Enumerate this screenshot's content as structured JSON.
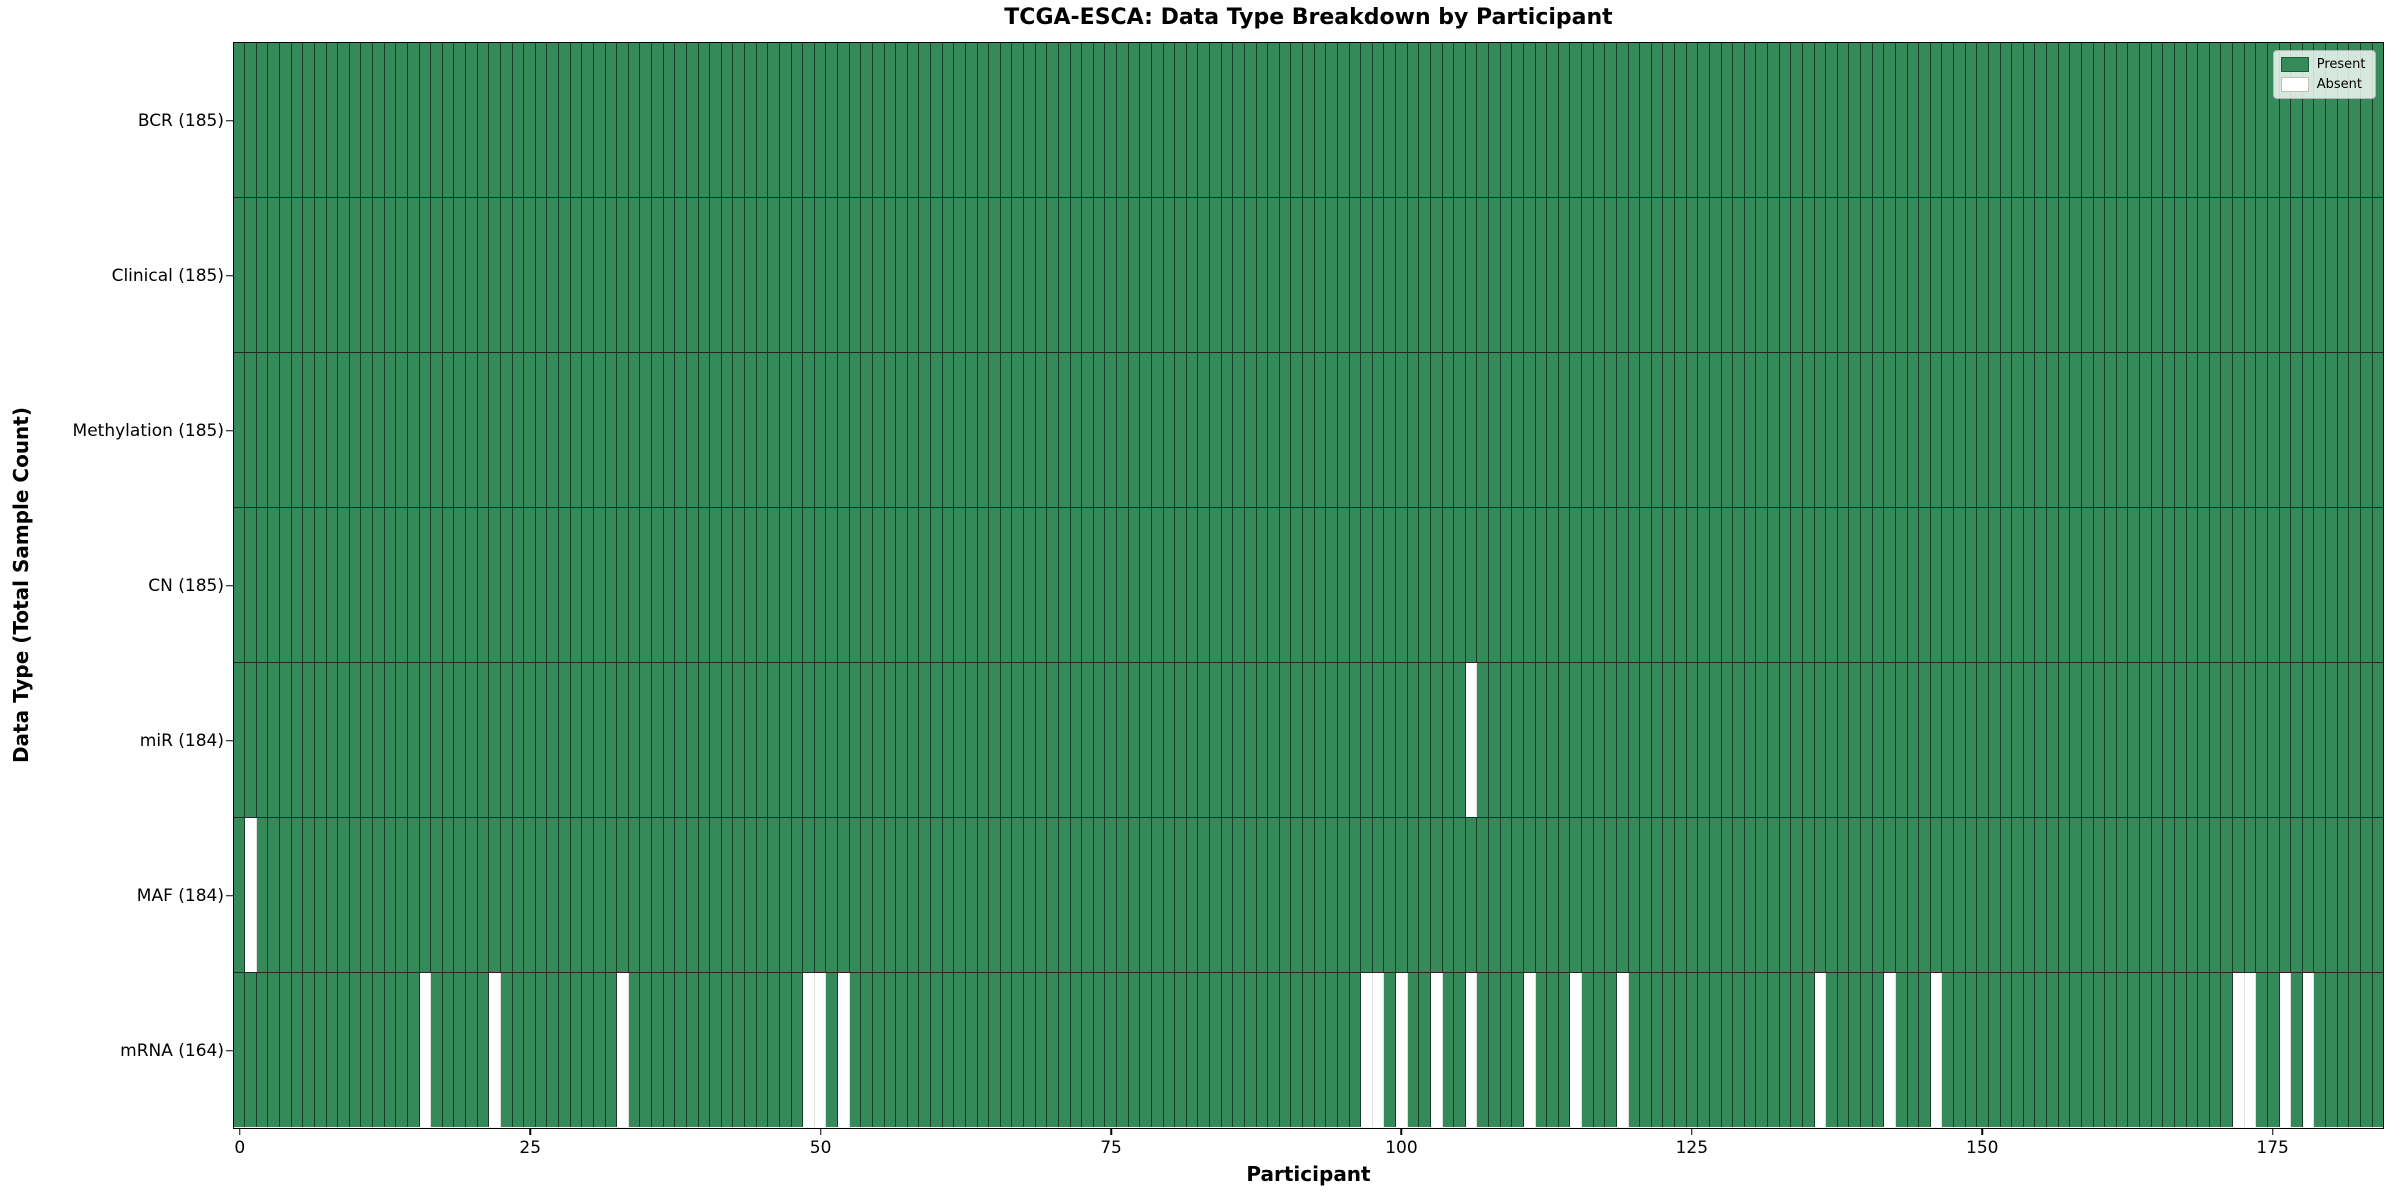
{
  "title": "TCGA-ESCA: Data Type Breakdown by Participant",
  "xlabel": "Participant",
  "ylabel": "Data Type (Total Sample Count)",
  "legend": {
    "present_label": "Present",
    "absent_label": "Absent"
  },
  "colors": {
    "present": "#348a58",
    "absent": "#ffffff",
    "cell_edge": "rgba(0,0,0,0.55)",
    "spine": "#000000"
  },
  "chart_data": {
    "type": "heatmap",
    "title": "TCGA-ESCA: Data Type Breakdown by Participant",
    "xlabel": "Participant",
    "ylabel": "Data Type (Total Sample Count)",
    "legend": [
      "Present",
      "Absent"
    ],
    "legend_position": "upper right",
    "grid": false,
    "n_participants": 185,
    "x_ticks": [
      0,
      25,
      50,
      75,
      100,
      125,
      150,
      175
    ],
    "x_range": [
      0,
      184
    ],
    "value_encoding": {
      "present": 1,
      "absent": 0
    },
    "rows": [
      {
        "name": "BCR",
        "label": "BCR (185)",
        "total": 185,
        "absent_participants": []
      },
      {
        "name": "Clinical",
        "label": "Clinical (185)",
        "total": 185,
        "absent_participants": []
      },
      {
        "name": "Methylation",
        "label": "Methylation (185)",
        "total": 185,
        "absent_participants": []
      },
      {
        "name": "CN",
        "label": "CN (185)",
        "total": 185,
        "absent_participants": []
      },
      {
        "name": "miR",
        "label": "miR (184)",
        "total": 184,
        "absent_participants": [
          106
        ]
      },
      {
        "name": "MAF",
        "label": "MAF (184)",
        "total": 184,
        "absent_participants": [
          1
        ]
      },
      {
        "name": "mRNA",
        "label": "mRNA (164)",
        "total": 164,
        "absent_participants": [
          16,
          22,
          33,
          49,
          50,
          52,
          97,
          98,
          100,
          103,
          106,
          111,
          115,
          119,
          136,
          142,
          146,
          172,
          173,
          176,
          178
        ]
      }
    ]
  }
}
